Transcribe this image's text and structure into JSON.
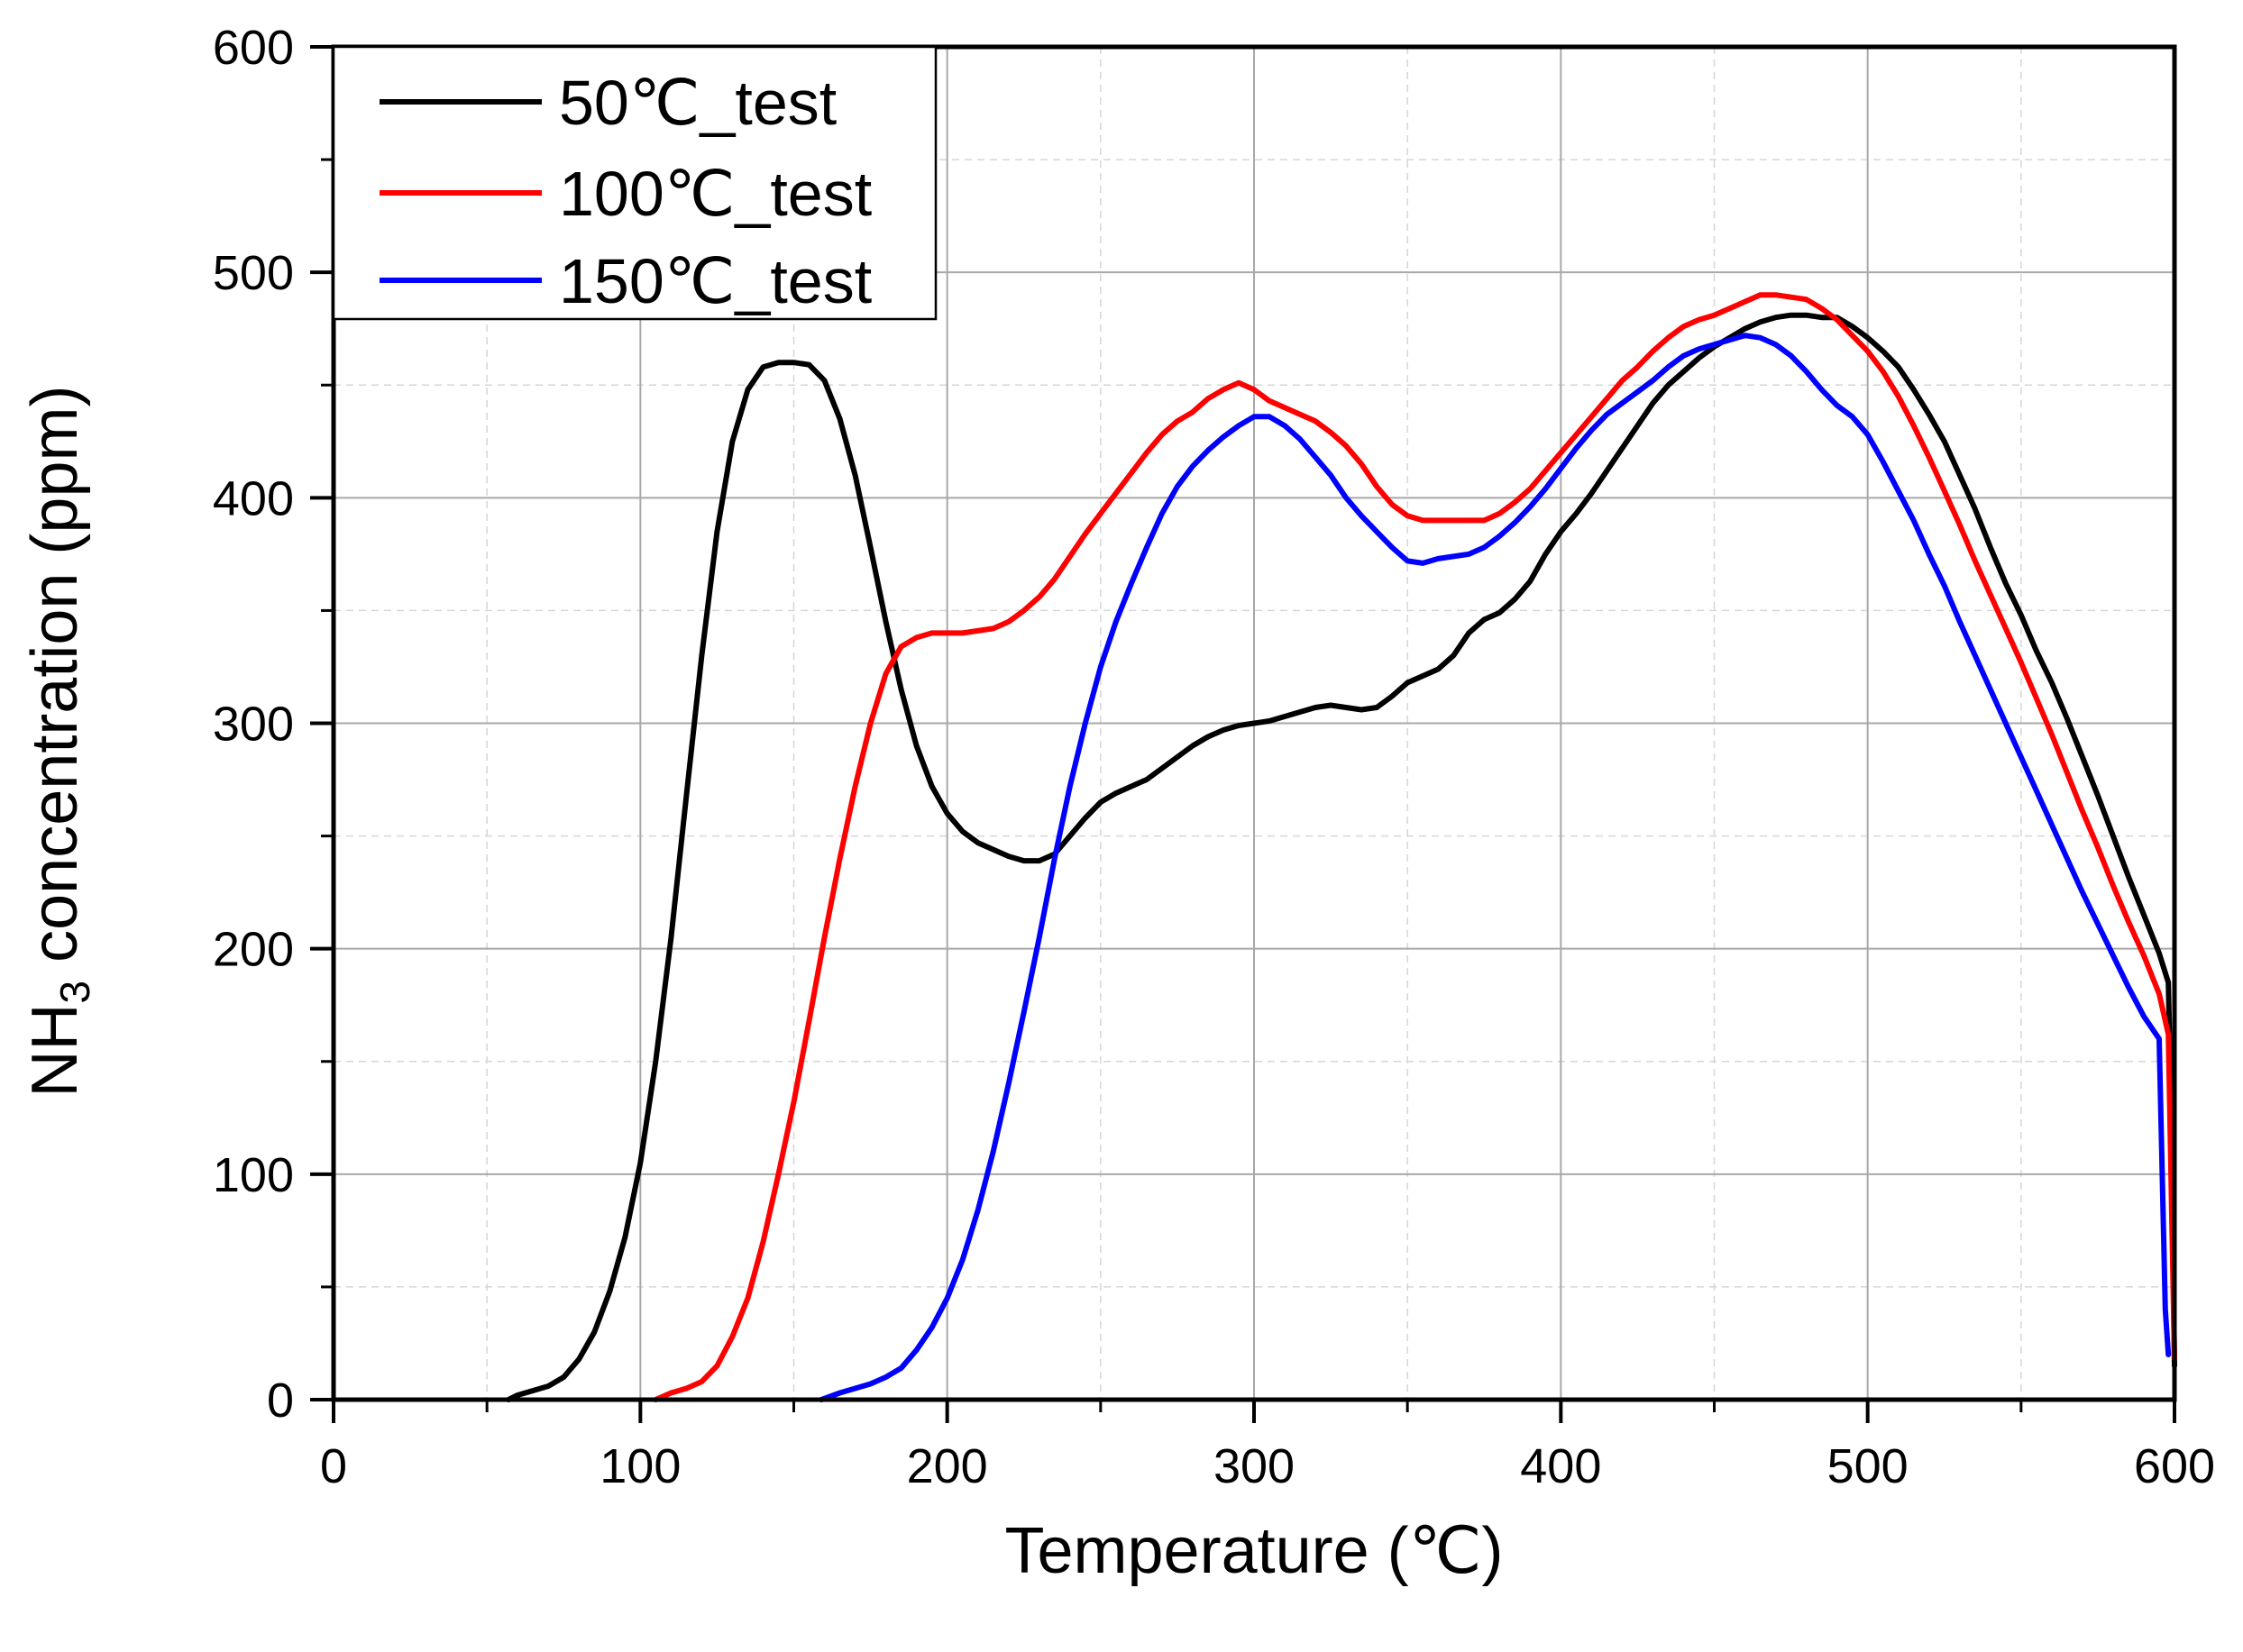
{
  "chart_data": {
    "type": "line",
    "title": "",
    "xlabel": "Temperature (℃)",
    "ylabel": {
      "main": "NH",
      "subscript": "3",
      "rest": " concentration (ppm)"
    },
    "xlim": [
      0,
      600
    ],
    "ylim": [
      0,
      600
    ],
    "xticks": [
      0,
      100,
      200,
      300,
      400,
      500,
      600
    ],
    "yticks": [
      0,
      100,
      200,
      300,
      400,
      500,
      600
    ],
    "xminor": [
      50,
      150,
      250,
      350,
      450,
      550
    ],
    "yminor": [
      50,
      150,
      250,
      350,
      450,
      550
    ],
    "grid": true,
    "legend_position": "top-left",
    "series": [
      {
        "name": "50℃_test",
        "color": "#000000",
        "points": [
          [
            57,
            0
          ],
          [
            60,
            2
          ],
          [
            70,
            6
          ],
          [
            75,
            10
          ],
          [
            80,
            18
          ],
          [
            85,
            30
          ],
          [
            90,
            48
          ],
          [
            95,
            72
          ],
          [
            100,
            105
          ],
          [
            105,
            150
          ],
          [
            110,
            205
          ],
          [
            115,
            268
          ],
          [
            120,
            330
          ],
          [
            125,
            385
          ],
          [
            130,
            425
          ],
          [
            135,
            448
          ],
          [
            140,
            458
          ],
          [
            145,
            460
          ],
          [
            150,
            460
          ],
          [
            155,
            459
          ],
          [
            160,
            452
          ],
          [
            165,
            435
          ],
          [
            170,
            410
          ],
          [
            175,
            378
          ],
          [
            180,
            345
          ],
          [
            185,
            315
          ],
          [
            190,
            290
          ],
          [
            195,
            272
          ],
          [
            200,
            260
          ],
          [
            205,
            252
          ],
          [
            210,
            247
          ],
          [
            215,
            244
          ],
          [
            220,
            241
          ],
          [
            225,
            239
          ],
          [
            230,
            239
          ],
          [
            235,
            242
          ],
          [
            240,
            250
          ],
          [
            245,
            258
          ],
          [
            250,
            265
          ],
          [
            255,
            269
          ],
          [
            260,
            272
          ],
          [
            265,
            275
          ],
          [
            270,
            280
          ],
          [
            275,
            285
          ],
          [
            280,
            290
          ],
          [
            285,
            294
          ],
          [
            290,
            297
          ],
          [
            295,
            299
          ],
          [
            300,
            300
          ],
          [
            305,
            301
          ],
          [
            310,
            303
          ],
          [
            315,
            305
          ],
          [
            320,
            307
          ],
          [
            325,
            308
          ],
          [
            330,
            307
          ],
          [
            335,
            306
          ],
          [
            340,
            307
          ],
          [
            345,
            312
          ],
          [
            350,
            318
          ],
          [
            355,
            321
          ],
          [
            360,
            324
          ],
          [
            365,
            330
          ],
          [
            370,
            340
          ],
          [
            375,
            346
          ],
          [
            380,
            349
          ],
          [
            385,
            355
          ],
          [
            390,
            363
          ],
          [
            395,
            375
          ],
          [
            400,
            385
          ],
          [
            405,
            393
          ],
          [
            410,
            402
          ],
          [
            415,
            412
          ],
          [
            420,
            422
          ],
          [
            425,
            432
          ],
          [
            430,
            442
          ],
          [
            435,
            450
          ],
          [
            440,
            456
          ],
          [
            445,
            462
          ],
          [
            450,
            467
          ],
          [
            455,
            471
          ],
          [
            460,
            475
          ],
          [
            465,
            478
          ],
          [
            470,
            480
          ],
          [
            475,
            481
          ],
          [
            480,
            481
          ],
          [
            485,
            480
          ],
          [
            490,
            480
          ],
          [
            495,
            476
          ],
          [
            500,
            471
          ],
          [
            505,
            465
          ],
          [
            510,
            458
          ],
          [
            515,
            448
          ],
          [
            520,
            437
          ],
          [
            525,
            425
          ],
          [
            530,
            410
          ],
          [
            535,
            395
          ],
          [
            540,
            378
          ],
          [
            545,
            362
          ],
          [
            550,
            348
          ],
          [
            555,
            332
          ],
          [
            560,
            318
          ],
          [
            565,
            302
          ],
          [
            570,
            285
          ],
          [
            575,
            268
          ],
          [
            580,
            250
          ],
          [
            585,
            232
          ],
          [
            590,
            215
          ],
          [
            595,
            198
          ],
          [
            598,
            185
          ],
          [
            599,
            120
          ],
          [
            600,
            15
          ]
        ]
      },
      {
        "name": "100℃_test",
        "color": "#ff0000",
        "points": [
          [
            105,
            0
          ],
          [
            110,
            3
          ],
          [
            115,
            5
          ],
          [
            120,
            8
          ],
          [
            125,
            15
          ],
          [
            130,
            28
          ],
          [
            135,
            45
          ],
          [
            140,
            70
          ],
          [
            145,
            100
          ],
          [
            150,
            132
          ],
          [
            155,
            168
          ],
          [
            160,
            205
          ],
          [
            165,
            240
          ],
          [
            170,
            272
          ],
          [
            175,
            300
          ],
          [
            180,
            322
          ],
          [
            185,
            334
          ],
          [
            190,
            338
          ],
          [
            195,
            340
          ],
          [
            200,
            340
          ],
          [
            205,
            340
          ],
          [
            210,
            341
          ],
          [
            215,
            342
          ],
          [
            220,
            345
          ],
          [
            225,
            350
          ],
          [
            230,
            356
          ],
          [
            235,
            364
          ],
          [
            240,
            374
          ],
          [
            245,
            384
          ],
          [
            250,
            393
          ],
          [
            255,
            402
          ],
          [
            260,
            411
          ],
          [
            265,
            420
          ],
          [
            270,
            428
          ],
          [
            275,
            434
          ],
          [
            280,
            438
          ],
          [
            285,
            444
          ],
          [
            290,
            448
          ],
          [
            295,
            451
          ],
          [
            300,
            448
          ],
          [
            305,
            443
          ],
          [
            310,
            440
          ],
          [
            315,
            437
          ],
          [
            320,
            434
          ],
          [
            325,
            429
          ],
          [
            330,
            423
          ],
          [
            335,
            415
          ],
          [
            340,
            405
          ],
          [
            345,
            397
          ],
          [
            350,
            392
          ],
          [
            355,
            390
          ],
          [
            360,
            390
          ],
          [
            365,
            390
          ],
          [
            370,
            390
          ],
          [
            375,
            390
          ],
          [
            380,
            393
          ],
          [
            385,
            398
          ],
          [
            390,
            404
          ],
          [
            395,
            412
          ],
          [
            400,
            420
          ],
          [
            405,
            428
          ],
          [
            410,
            436
          ],
          [
            415,
            444
          ],
          [
            420,
            452
          ],
          [
            425,
            458
          ],
          [
            430,
            465
          ],
          [
            435,
            471
          ],
          [
            440,
            476
          ],
          [
            445,
            479
          ],
          [
            450,
            481
          ],
          [
            455,
            484
          ],
          [
            460,
            487
          ],
          [
            465,
            490
          ],
          [
            470,
            490
          ],
          [
            475,
            489
          ],
          [
            480,
            488
          ],
          [
            485,
            484
          ],
          [
            490,
            479
          ],
          [
            495,
            472
          ],
          [
            500,
            465
          ],
          [
            505,
            456
          ],
          [
            510,
            445
          ],
          [
            515,
            432
          ],
          [
            520,
            418
          ],
          [
            525,
            403
          ],
          [
            530,
            388
          ],
          [
            535,
            372
          ],
          [
            540,
            357
          ],
          [
            545,
            342
          ],
          [
            550,
            327
          ],
          [
            555,
            311
          ],
          [
            560,
            295
          ],
          [
            565,
            278
          ],
          [
            570,
            261
          ],
          [
            575,
            245
          ],
          [
            580,
            228
          ],
          [
            585,
            212
          ],
          [
            590,
            197
          ],
          [
            595,
            180
          ],
          [
            598,
            162
          ],
          [
            599,
            90
          ],
          [
            600,
            18
          ]
        ]
      },
      {
        "name": "150℃_test",
        "color": "#0000ff",
        "points": [
          [
            159,
            0
          ],
          [
            165,
            3
          ],
          [
            170,
            5
          ],
          [
            175,
            7
          ],
          [
            180,
            10
          ],
          [
            185,
            14
          ],
          [
            190,
            22
          ],
          [
            195,
            32
          ],
          [
            200,
            45
          ],
          [
            205,
            62
          ],
          [
            210,
            84
          ],
          [
            215,
            110
          ],
          [
            220,
            140
          ],
          [
            225,
            172
          ],
          [
            230,
            205
          ],
          [
            235,
            240
          ],
          [
            240,
            272
          ],
          [
            245,
            300
          ],
          [
            250,
            325
          ],
          [
            255,
            345
          ],
          [
            260,
            362
          ],
          [
            265,
            378
          ],
          [
            270,
            393
          ],
          [
            275,
            405
          ],
          [
            280,
            414
          ],
          [
            285,
            421
          ],
          [
            290,
            427
          ],
          [
            295,
            432
          ],
          [
            300,
            436
          ],
          [
            305,
            436
          ],
          [
            310,
            432
          ],
          [
            315,
            426
          ],
          [
            320,
            418
          ],
          [
            325,
            410
          ],
          [
            330,
            400
          ],
          [
            335,
            392
          ],
          [
            340,
            385
          ],
          [
            345,
            378
          ],
          [
            350,
            372
          ],
          [
            355,
            371
          ],
          [
            360,
            373
          ],
          [
            365,
            374
          ],
          [
            370,
            375
          ],
          [
            375,
            378
          ],
          [
            380,
            383
          ],
          [
            385,
            389
          ],
          [
            390,
            396
          ],
          [
            395,
            404
          ],
          [
            400,
            413
          ],
          [
            405,
            422
          ],
          [
            410,
            430
          ],
          [
            415,
            437
          ],
          [
            420,
            442
          ],
          [
            425,
            447
          ],
          [
            430,
            452
          ],
          [
            435,
            458
          ],
          [
            440,
            463
          ],
          [
            445,
            466
          ],
          [
            450,
            468
          ],
          [
            455,
            470
          ],
          [
            460,
            472
          ],
          [
            465,
            471
          ],
          [
            470,
            468
          ],
          [
            475,
            463
          ],
          [
            480,
            456
          ],
          [
            485,
            448
          ],
          [
            490,
            441
          ],
          [
            495,
            436
          ],
          [
            500,
            428
          ],
          [
            505,
            416
          ],
          [
            510,
            403
          ],
          [
            515,
            390
          ],
          [
            520,
            375
          ],
          [
            525,
            361
          ],
          [
            530,
            345
          ],
          [
            535,
            330
          ],
          [
            540,
            315
          ],
          [
            545,
            300
          ],
          [
            550,
            285
          ],
          [
            555,
            270
          ],
          [
            560,
            255
          ],
          [
            565,
            240
          ],
          [
            570,
            225
          ],
          [
            575,
            211
          ],
          [
            580,
            197
          ],
          [
            585,
            183
          ],
          [
            590,
            170
          ],
          [
            595,
            160
          ],
          [
            597,
            40
          ],
          [
            598,
            20
          ]
        ]
      }
    ]
  }
}
